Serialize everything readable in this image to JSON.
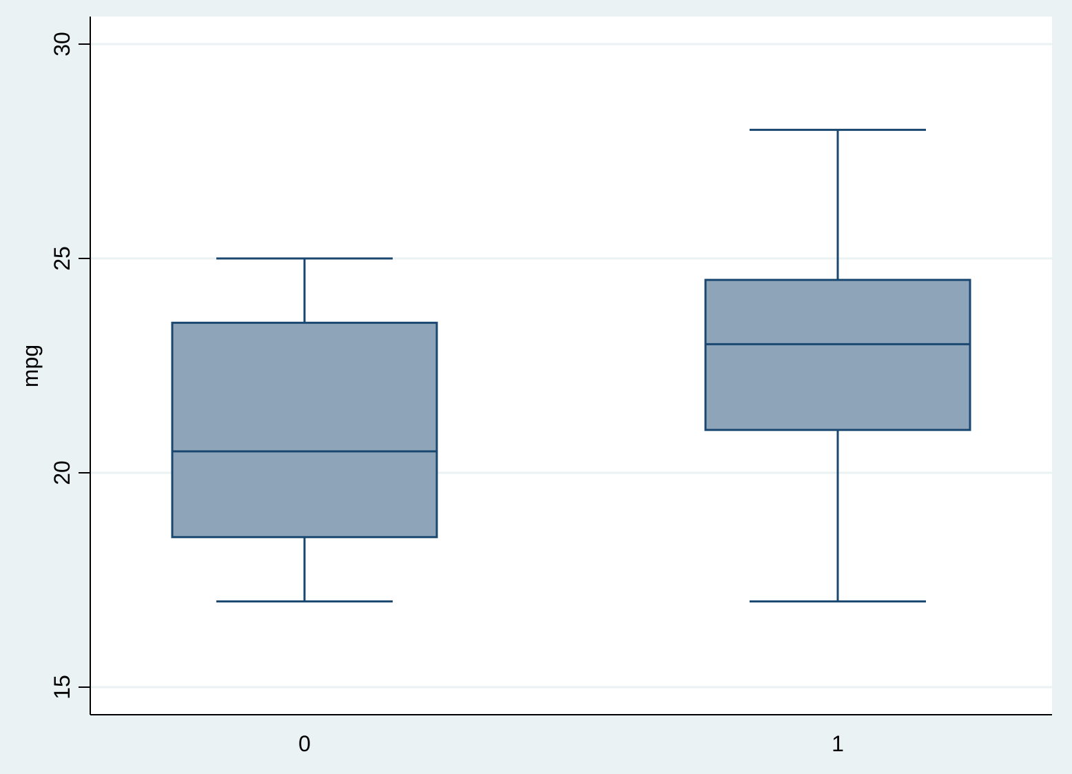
{
  "chart_data": {
    "type": "box",
    "ylabel": "mpg",
    "xlabel": "",
    "ylim": [
      14.35,
      30.65
    ],
    "yticks": [
      15,
      20,
      25,
      30
    ],
    "ytick_labels": [
      "15",
      "20",
      "25",
      "30"
    ],
    "grid": true,
    "legend": "none",
    "categories": [
      "0",
      "1"
    ],
    "boxes": [
      {
        "category": "0",
        "whisker_low": 17,
        "q1": 18.5,
        "median": 20.5,
        "q3": 23.5,
        "whisker_high": 25
      },
      {
        "category": "1",
        "whisker_low": 17,
        "q1": 21,
        "median": 23,
        "q3": 24.5,
        "whisker_high": 28
      }
    ],
    "colors": {
      "background": "#eaf2f3",
      "plot_area": "#ffffff",
      "gridline": "#eaf2f3",
      "box_fill": "#8ea4b9",
      "box_line": "#1a476f",
      "axis": "#000000"
    }
  }
}
